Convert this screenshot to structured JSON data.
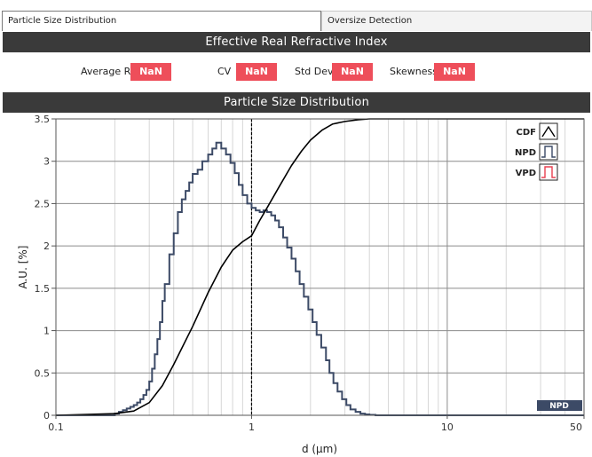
{
  "tabs": [
    {
      "label": "Particle Size Distribution",
      "active": true
    },
    {
      "label": "Oversize Detection",
      "active": false
    }
  ],
  "refractive_index": {
    "title": "Effective Real Refractive Index",
    "stats": [
      {
        "label": "Average RI",
        "value": "NaN"
      },
      {
        "label": "CV",
        "value": "NaN"
      },
      {
        "label": "Std Dev",
        "value": "NaN"
      },
      {
        "label": "Skewness",
        "value": "NaN"
      }
    ]
  },
  "psd_panel": {
    "title": "Particle Size Distribution",
    "mode_badge": "NPD"
  },
  "colors": {
    "header_bar": "#3a3a3a",
    "badge": "#ee4e5a",
    "npd_line": "#3c4a66",
    "vpd_legend": "#e84050",
    "cdf_line": "#000000"
  },
  "chart_data": {
    "type": "line",
    "xscale": "log",
    "xlim": [
      0.1,
      50
    ],
    "ylim": [
      0,
      3.5
    ],
    "xlabel": "d (µm)",
    "ylabel": "A.U. [%]",
    "xticks": [
      {
        "value": 0.1,
        "label": "0.1"
      },
      {
        "value": 1,
        "label": "1"
      },
      {
        "value": 10,
        "label": "10"
      },
      {
        "value": 50,
        "label": "50"
      }
    ],
    "yticks": [
      {
        "value": 0,
        "label": "0"
      },
      {
        "value": 0.5,
        "label": "0.5"
      },
      {
        "value": 1,
        "label": "1"
      },
      {
        "value": 1.5,
        "label": "1.5"
      },
      {
        "value": 2,
        "label": "2"
      },
      {
        "value": 2.5,
        "label": "2.5"
      },
      {
        "value": 3,
        "label": "3"
      },
      {
        "value": 3.5,
        "label": "3.5"
      }
    ],
    "grid": true,
    "marker_line_x": 1,
    "legend": {
      "position": "top-right",
      "entries": [
        "CDF",
        "NPD",
        "VPD"
      ]
    },
    "series": [
      {
        "name": "NPD",
        "style": "step",
        "x": [
          0.1,
          0.2,
          0.21,
          0.22,
          0.23,
          0.24,
          0.25,
          0.26,
          0.27,
          0.28,
          0.29,
          0.3,
          0.31,
          0.32,
          0.33,
          0.34,
          0.35,
          0.36,
          0.38,
          0.4,
          0.42,
          0.44,
          0.46,
          0.48,
          0.5,
          0.53,
          0.56,
          0.6,
          0.63,
          0.66,
          0.7,
          0.74,
          0.78,
          0.82,
          0.86,
          0.9,
          0.95,
          1.0,
          1.05,
          1.1,
          1.15,
          1.2,
          1.26,
          1.32,
          1.38,
          1.45,
          1.52,
          1.6,
          1.68,
          1.76,
          1.85,
          1.95,
          2.05,
          2.15,
          2.27,
          2.4,
          2.5,
          2.62,
          2.75,
          2.9,
          3.05,
          3.2,
          3.4,
          3.6,
          3.8,
          4.0,
          4.3,
          4.6,
          50
        ],
        "y": [
          0.0,
          0.02,
          0.04,
          0.06,
          0.08,
          0.1,
          0.12,
          0.15,
          0.19,
          0.24,
          0.3,
          0.4,
          0.55,
          0.72,
          0.9,
          1.1,
          1.35,
          1.55,
          1.9,
          2.15,
          2.4,
          2.55,
          2.65,
          2.75,
          2.85,
          2.9,
          3.0,
          3.08,
          3.15,
          3.22,
          3.15,
          3.08,
          2.98,
          2.86,
          2.72,
          2.6,
          2.5,
          2.45,
          2.42,
          2.4,
          2.42,
          2.4,
          2.36,
          2.3,
          2.22,
          2.1,
          1.98,
          1.85,
          1.7,
          1.55,
          1.4,
          1.25,
          1.1,
          0.95,
          0.8,
          0.65,
          0.5,
          0.38,
          0.28,
          0.19,
          0.12,
          0.07,
          0.04,
          0.02,
          0.01,
          0.005,
          0.0,
          0.0,
          0.0
        ]
      },
      {
        "name": "CDF",
        "style": "line",
        "x": [
          0.1,
          0.2,
          0.25,
          0.3,
          0.35,
          0.4,
          0.5,
          0.6,
          0.7,
          0.8,
          0.9,
          1.0,
          1.1,
          1.2,
          1.4,
          1.6,
          1.8,
          2.0,
          2.3,
          2.6,
          3.0,
          3.5,
          4.0,
          5.0,
          6.0,
          10.0,
          20.0,
          50.0
        ],
        "y": [
          0.0,
          0.02,
          0.05,
          0.15,
          0.35,
          0.6,
          1.05,
          1.45,
          1.75,
          1.95,
          2.05,
          2.12,
          2.3,
          2.45,
          2.72,
          2.95,
          3.12,
          3.25,
          3.37,
          3.44,
          3.47,
          3.49,
          3.5,
          3.5,
          3.5,
          3.5,
          3.5,
          3.5
        ]
      }
    ]
  }
}
